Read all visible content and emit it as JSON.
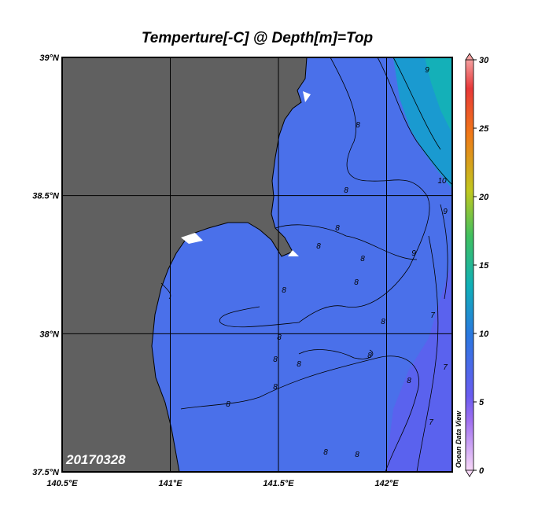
{
  "title": "Temperture[-C] @ Depth[m]=Top",
  "map": {
    "xlim": [
      140.5,
      142.3
    ],
    "ylim": [
      37.5,
      39
    ],
    "xticks": [
      {
        "value": 140.5,
        "label": "140.5°E"
      },
      {
        "value": 141,
        "label": "141°E"
      },
      {
        "value": 141.5,
        "label": "141.5°E"
      },
      {
        "value": 142,
        "label": "142°E"
      }
    ],
    "yticks": [
      {
        "value": 37.5,
        "label": "37.5°N"
      },
      {
        "value": 38,
        "label": "38°N"
      },
      {
        "value": 38.5,
        "label": "38.5°N"
      },
      {
        "value": 39,
        "label": "39°N"
      }
    ],
    "date_label": "20170328",
    "contour_labels": [
      9,
      8,
      10,
      9,
      9,
      8,
      8,
      8,
      8,
      8,
      8,
      8,
      8,
      8,
      7,
      8,
      8,
      8,
      8,
      7,
      8,
      8,
      7,
      8
    ]
  },
  "colorbar": {
    "lim": [
      0,
      30
    ],
    "ticks": [
      0,
      5,
      10,
      15,
      20,
      25,
      30
    ],
    "label": "Ocean Data View"
  }
}
